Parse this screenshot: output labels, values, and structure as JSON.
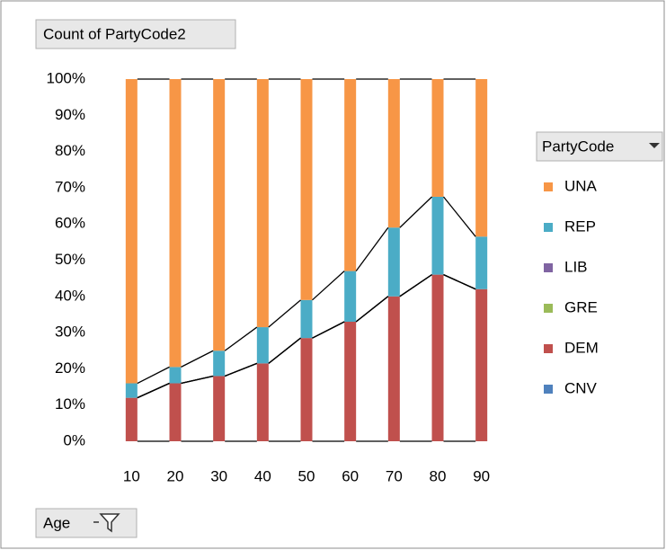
{
  "chart_data": {
    "type": "bar",
    "stacked": true,
    "value_field": "Count of PartyCode2",
    "axis_field": "Age",
    "legend_field": "PartyCode",
    "categories": [
      "10",
      "20",
      "30",
      "40",
      "50",
      "60",
      "70",
      "80",
      "90"
    ],
    "series": [
      {
        "name": "CNV",
        "color": "#4f81bd",
        "values": [
          0,
          0,
          0,
          0,
          0,
          0,
          0,
          0,
          0
        ]
      },
      {
        "name": "DEM",
        "color": "#c0504d",
        "values": [
          12,
          16,
          18,
          21.5,
          28.5,
          33,
          40,
          46,
          42
        ]
      },
      {
        "name": "GRE",
        "color": "#9bbb59",
        "values": [
          0,
          0,
          0,
          0,
          0,
          0,
          0,
          0,
          0
        ]
      },
      {
        "name": "LIB",
        "color": "#8064a2",
        "values": [
          0,
          0,
          0,
          0,
          0,
          0,
          0,
          0,
          0
        ]
      },
      {
        "name": "REP",
        "color": "#4bacc6",
        "values": [
          4,
          4.5,
          7,
          10,
          10.5,
          14,
          19,
          21.5,
          14.5
        ]
      },
      {
        "name": "UNA",
        "color": "#f79646",
        "values": [
          84,
          79.5,
          75,
          68.5,
          61,
          53,
          41,
          32.5,
          43.5
        ]
      }
    ],
    "ylim": [
      0,
      100
    ],
    "yticks": [
      {
        "value": 0,
        "label": "0%"
      },
      {
        "value": 10,
        "label": "10%"
      },
      {
        "value": 20,
        "label": "20%"
      },
      {
        "value": 30,
        "label": "30%"
      },
      {
        "value": 40,
        "label": "40%"
      },
      {
        "value": 50,
        "label": "50%"
      },
      {
        "value": 60,
        "label": "60%"
      },
      {
        "value": 70,
        "label": "70%"
      },
      {
        "value": 80,
        "label": "80%"
      },
      {
        "value": 90,
        "label": "90%"
      },
      {
        "value": 100,
        "label": "100%"
      }
    ],
    "grid": false,
    "series_lines": true,
    "legend": "right"
  }
}
